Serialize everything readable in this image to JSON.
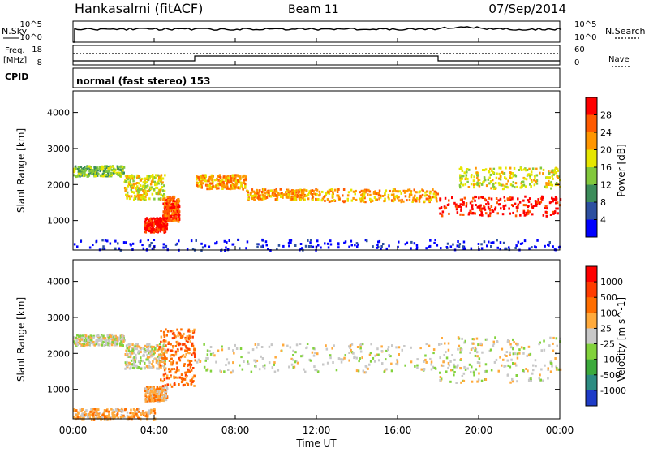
{
  "header": {
    "station": "Hankasalmi (fitACF)",
    "beam": "Beam 11",
    "date": "07/Sep/2014"
  },
  "summary_panels": {
    "nsky_label": "N.Sky",
    "nsky_ticks": [
      "10^5",
      "10^0"
    ],
    "nsearch_label": "N.Search",
    "nsearch_ticks": [
      "10^5",
      "10^0"
    ],
    "freq_label_1": "Freq.",
    "freq_label_2": "[MHz]",
    "freq_ticks": [
      "18",
      "8"
    ],
    "nave_label": "Nave",
    "nave_ticks": [
      "60",
      "0"
    ],
    "cpid_label": "CPID",
    "cpid_text": "normal (fast stereo) 153"
  },
  "chart_data": [
    {
      "type": "heatmap",
      "panel": "power",
      "ylabel": "Slant Range [km]",
      "xlabel": "Time UT",
      "x_ticks": [
        "00:00",
        "04:00",
        "08:00",
        "12:00",
        "16:00",
        "20:00",
        "00:00"
      ],
      "xlim_hours": [
        0,
        24
      ],
      "y_ticks": [
        1000,
        2000,
        3000,
        4000
      ],
      "ylim_km": [
        180,
        4600
      ],
      "colorbar": {
        "label": "Power [dB]",
        "ticks": [
          "4",
          "8",
          "12",
          "16",
          "20",
          "24",
          "28"
        ],
        "colors": [
          "#0000ff",
          "#2d50a0",
          "#3c8c5a",
          "#82c83c",
          "#e6e600",
          "#ff9600",
          "#ff5a00",
          "#ff0000"
        ]
      },
      "bands": [
        {
          "t": [
            0,
            2.5
          ],
          "r": [
            2250,
            2550
          ],
          "level": 3
        },
        {
          "t": [
            2.5,
            4.5
          ],
          "r": [
            1600,
            2300
          ],
          "level": 4
        },
        {
          "t": [
            3.5,
            4.6
          ],
          "r": [
            700,
            1100
          ],
          "level": 7
        },
        {
          "t": [
            4.4,
            5.2
          ],
          "r": [
            1000,
            1700
          ],
          "level": 6
        },
        {
          "t": [
            6,
            8.5
          ],
          "r": [
            1900,
            2300
          ],
          "level": 5
        },
        {
          "t": [
            8.5,
            12
          ],
          "r": [
            1600,
            1900
          ],
          "level": 5
        },
        {
          "t": [
            12,
            18
          ],
          "r": [
            1550,
            1900
          ],
          "level": 5
        },
        {
          "t": [
            18,
            24
          ],
          "r": [
            1150,
            1700
          ],
          "level": 7
        },
        {
          "t": [
            19,
            24
          ],
          "r": [
            1900,
            2500
          ],
          "level": 4
        },
        {
          "t": [
            0,
            24
          ],
          "r": [
            200,
            500
          ],
          "level": 0
        }
      ]
    },
    {
      "type": "heatmap",
      "panel": "velocity",
      "ylabel": "Slant Range [km]",
      "xlabel": "Time UT",
      "x_ticks": [
        "00:00",
        "04:00",
        "08:00",
        "12:00",
        "16:00",
        "20:00",
        "00:00"
      ],
      "xlim_hours": [
        0,
        24
      ],
      "y_ticks": [
        1000,
        2000,
        3000,
        4000
      ],
      "ylim_km": [
        180,
        4600
      ],
      "colorbar": {
        "label": "Velocity [m s^-1]",
        "ticks": [
          "1000",
          "500",
          "100",
          "25",
          "-25",
          "-100",
          "-500",
          "-1000"
        ],
        "colors": [
          "#1e3cc8",
          "#2d8c82",
          "#3caa3c",
          "#82d23c",
          "#c8c8c8",
          "#ffaa3c",
          "#ff6e00",
          "#ff3c00",
          "#ff0000"
        ]
      },
      "bands": [
        {
          "t": [
            0,
            2.5
          ],
          "r": [
            2250,
            2550
          ],
          "level": 4
        },
        {
          "t": [
            2.5,
            4.5
          ],
          "r": [
            1600,
            2300
          ],
          "level": 4
        },
        {
          "t": [
            3.5,
            4.6
          ],
          "r": [
            700,
            1100
          ],
          "level": 5
        },
        {
          "t": [
            4.2,
            6
          ],
          "r": [
            1100,
            2700
          ],
          "level": 6
        },
        {
          "t": [
            6,
            18
          ],
          "r": [
            1500,
            2300
          ],
          "level": 4
        },
        {
          "t": [
            18,
            24
          ],
          "r": [
            1200,
            2500
          ],
          "level": 4
        },
        {
          "t": [
            0,
            4
          ],
          "r": [
            200,
            500
          ],
          "level": 5
        }
      ]
    }
  ]
}
